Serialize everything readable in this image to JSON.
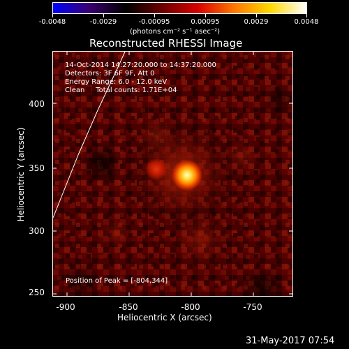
{
  "colorbar": {
    "tick_labels": [
      "-0.0048",
      "-0.0029",
      "-0.00095",
      "0.00095",
      "0.0029",
      "0.0048"
    ],
    "units_label": "(photons cm⁻² s⁻¹ asec⁻²)",
    "gradient_stops": [
      "#0000ff",
      "#3a0070",
      "#000000",
      "#6a0000",
      "#d80000",
      "#ff7700",
      "#ffd800",
      "#ffffff"
    ]
  },
  "plot": {
    "title": "Reconstructed RHESSI Image",
    "info_lines": [
      "14-Oct-2014 14:27:20.000 to 14:37:20.000",
      "Detectors: 3F 6F 9F, Att 0",
      "Energy Range: 6.0 - 12.0 keV",
      "Clean     Total counts: 1.71E+04"
    ],
    "peak_text": "Position of Peak = [-804,344]",
    "xlabel": "Heliocentric X (arcsec)",
    "ylabel": "Heliocentric Y (arcsec)",
    "x_ticks": [
      "-900",
      "-850",
      "-800",
      "-750"
    ],
    "y_ticks": [
      "400",
      "350",
      "300",
      "250"
    ],
    "x_range": [
      -910,
      -718
    ],
    "y_range": [
      248,
      443
    ]
  },
  "timestamp": "31-May-2017 07:54"
}
